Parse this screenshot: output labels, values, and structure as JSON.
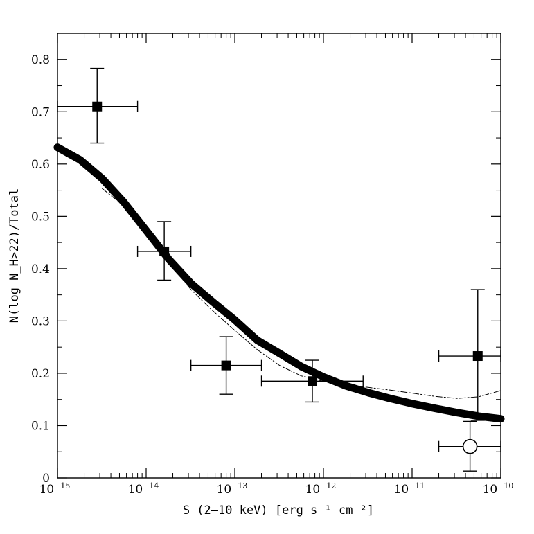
{
  "chart_data": {
    "type": "scatter",
    "title": "",
    "xlabel": "S (2–10 keV) [erg s⁻¹ cm⁻²]",
    "ylabel": "N(log N_H>22)/Total",
    "xscale": "log",
    "xlim": [
      1e-15,
      1e-10
    ],
    "ylim": [
      0,
      0.85
    ],
    "x_ticks": [
      {
        "value": 1e-15,
        "base": "10",
        "exp": "−15"
      },
      {
        "value": 1e-14,
        "base": "10",
        "exp": "−14"
      },
      {
        "value": 1e-13,
        "base": "10",
        "exp": "−13"
      },
      {
        "value": 1e-12,
        "base": "10",
        "exp": "−12"
      },
      {
        "value": 1e-11,
        "base": "10",
        "exp": "−11"
      },
      {
        "value": 1e-10,
        "base": "10",
        "exp": "−10"
      }
    ],
    "y_ticks": [
      "0",
      "0.1",
      "0.2",
      "0.3",
      "0.4",
      "0.5",
      "0.6",
      "0.7",
      "0.8"
    ],
    "points": [
      {
        "x": 2.8e-15,
        "xerr_low": 1e-15,
        "xerr_high": 8e-15,
        "y": 0.71,
        "yerr_low": 0.64,
        "yerr_high": 0.783,
        "marker": "filled-square"
      },
      {
        "x": 1.6e-14,
        "xerr_low": 8e-15,
        "xerr_high": 3.2e-14,
        "y": 0.433,
        "yerr_low": 0.378,
        "yerr_high": 0.49,
        "marker": "filled-square"
      },
      {
        "x": 8e-14,
        "xerr_low": 3.2e-14,
        "xerr_high": 2e-13,
        "y": 0.215,
        "yerr_low": 0.16,
        "yerr_high": 0.27,
        "marker": "filled-square"
      },
      {
        "x": 7.5e-13,
        "xerr_low": 2e-13,
        "xerr_high": 2.8e-12,
        "y": 0.185,
        "yerr_low": 0.145,
        "yerr_high": 0.225,
        "marker": "filled-square"
      },
      {
        "x": 5.5e-11,
        "xerr_low": 2e-11,
        "xerr_high": 1e-10,
        "y": 0.233,
        "yerr_low": 0.11,
        "yerr_high": 0.36,
        "marker": "filled-square"
      },
      {
        "x": 4.5e-11,
        "xerr_low": 2e-11,
        "xerr_high": 1e-10,
        "y": 0.06,
        "yerr_low": 0.013,
        "yerr_high": 0.108,
        "marker": "open-circle"
      }
    ],
    "series": [
      {
        "name": "thick model",
        "style": "solid-thick",
        "color": "#000000",
        "x": [
          1e-15,
          1.8e-15,
          3.2e-15,
          5.6e-15,
          1e-14,
          1.8e-14,
          3.2e-14,
          5.6e-14,
          1e-13,
          1.8e-13,
          3.2e-13,
          5.6e-13,
          1e-12,
          1.8e-12,
          3.2e-12,
          5.6e-12,
          1e-11,
          1.8e-11,
          3.2e-11,
          5.6e-11,
          1e-10
        ],
        "y": [
          0.632,
          0.608,
          0.572,
          0.527,
          0.473,
          0.418,
          0.372,
          0.337,
          0.302,
          0.263,
          0.238,
          0.213,
          0.193,
          0.176,
          0.163,
          0.152,
          0.142,
          0.133,
          0.125,
          0.118,
          0.113
        ]
      },
      {
        "name": "thin model",
        "style": "dash-dot",
        "color": "#000000",
        "x": [
          3.2e-15,
          5.6e-15,
          1e-14,
          1.8e-14,
          3.2e-14,
          5.6e-14,
          1e-13,
          1.8e-13,
          3.2e-13,
          5.6e-13,
          1e-12,
          1.8e-12,
          3.2e-12,
          5.6e-12,
          1e-11,
          1.8e-11,
          3.2e-11,
          5.6e-11,
          1e-10
        ],
        "y": [
          0.553,
          0.52,
          0.465,
          0.412,
          0.36,
          0.32,
          0.282,
          0.245,
          0.215,
          0.195,
          0.185,
          0.178,
          0.173,
          0.168,
          0.162,
          0.156,
          0.152,
          0.155,
          0.167
        ]
      }
    ]
  }
}
